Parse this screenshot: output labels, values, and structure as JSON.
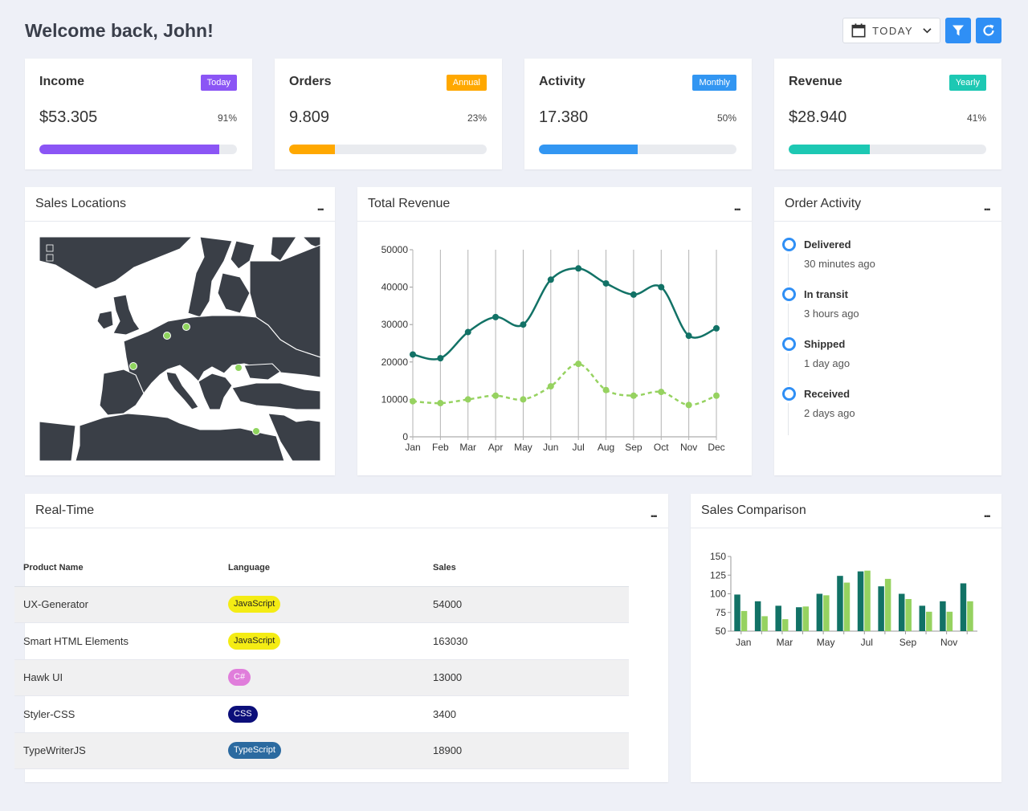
{
  "header": {
    "title": "Welcome back, John!",
    "date_filter": "TODAY"
  },
  "stats": [
    {
      "title": "Income",
      "badge": "Today",
      "badge_color": "#8b55f5",
      "value": "$53.305",
      "percent_label": "91%",
      "percent": 91,
      "color": "#8b55f5"
    },
    {
      "title": "Orders",
      "badge": "Annual",
      "badge_color": "#ffa800",
      "value": "9.809",
      "percent_label": "23%",
      "percent": 23,
      "color": "#ffa800"
    },
    {
      "title": "Activity",
      "badge": "Monthly",
      "badge_color": "#3296f2",
      "value": "17.380",
      "percent_label": "50%",
      "percent": 50,
      "color": "#3296f2"
    },
    {
      "title": "Revenue",
      "badge": "Yearly",
      "badge_color": "#1dc8b3",
      "value": "$28.940",
      "percent_label": "41%",
      "percent": 41,
      "color": "#1dc8b3"
    }
  ],
  "panels": {
    "sales_locations": "Sales Locations",
    "total_revenue": "Total Revenue",
    "order_activity": "Order Activity",
    "real_time": "Real-Time",
    "sales_comparison": "Sales Comparison",
    "more": "..."
  },
  "order_activity": [
    {
      "label": "Delivered",
      "time": "30 minutes ago"
    },
    {
      "label": "In transit",
      "time": "3 hours ago"
    },
    {
      "label": "Shipped",
      "time": "1 day ago"
    },
    {
      "label": "Received",
      "time": "2 days ago"
    }
  ],
  "table": {
    "headers": [
      "Product Name",
      "Language",
      "Sales"
    ],
    "rows": [
      {
        "product": "UX-Generator",
        "language": "JavaScript",
        "lang_bg": "#f4ec14",
        "lang_fg": "#222222",
        "sales": "54000"
      },
      {
        "product": "Smart HTML Elements",
        "language": "JavaScript",
        "lang_bg": "#f4ec14",
        "lang_fg": "#222222",
        "sales": "163030"
      },
      {
        "product": "Hawk UI",
        "language": "C#",
        "lang_bg": "#e07ddb",
        "lang_fg": "#ffffff",
        "sales": "13000"
      },
      {
        "product": "Styler-CSS",
        "language": "CSS",
        "lang_bg": "#0c0f7a",
        "lang_fg": "#ffffff",
        "sales": "3400"
      },
      {
        "product": "TypeWriterJS",
        "language": "TypeScript",
        "lang_bg": "#2b6aa0",
        "lang_fg": "#ffffff",
        "sales": "18900"
      }
    ]
  },
  "map": {
    "land_color": "#3a3f47",
    "marker_color": "#8fd45e"
  },
  "chart_data": [
    {
      "type": "line",
      "categories": [
        "Jan",
        "Feb",
        "Mar",
        "Apr",
        "May",
        "Jun",
        "Jul",
        "Aug",
        "Sep",
        "Oct",
        "Nov",
        "Dec"
      ],
      "yticks": [
        0,
        10000,
        20000,
        30000,
        40000,
        50000
      ],
      "ylim": [
        0,
        50000
      ],
      "grid": "vertical",
      "series": [
        {
          "values": [
            22000,
            21000,
            28000,
            32000,
            30000,
            42000,
            45000,
            41000,
            38000,
            40000,
            27000,
            29000
          ],
          "color": "#127266",
          "style": "solid"
        },
        {
          "values": [
            9500,
            9000,
            10000,
            11000,
            10000,
            13500,
            19500,
            12500,
            11000,
            12000,
            8500,
            11000
          ],
          "color": "#96d260",
          "style": "dashed"
        }
      ]
    },
    {
      "type": "bar",
      "categories": [
        "Jan",
        "Feb",
        "Mar",
        "Apr",
        "May",
        "Jun",
        "Jul",
        "Aug",
        "Sep",
        "Oct",
        "Nov",
        "Dec"
      ],
      "xtick_labels": [
        "Jan",
        "",
        "Mar",
        "",
        "May",
        "",
        "Jul",
        "",
        "Sep",
        "",
        "Nov",
        ""
      ],
      "yticks": [
        50,
        75,
        100,
        125,
        150
      ],
      "ylim": [
        50,
        150
      ],
      "series": [
        {
          "values": [
            99,
            90,
            84,
            82,
            100,
            124,
            130,
            110,
            100,
            84,
            90,
            114
          ],
          "color": "#127266"
        },
        {
          "values": [
            77,
            70,
            66,
            83,
            98,
            115,
            131,
            120,
            93,
            76,
            76,
            90
          ],
          "color": "#96d260"
        }
      ]
    }
  ]
}
